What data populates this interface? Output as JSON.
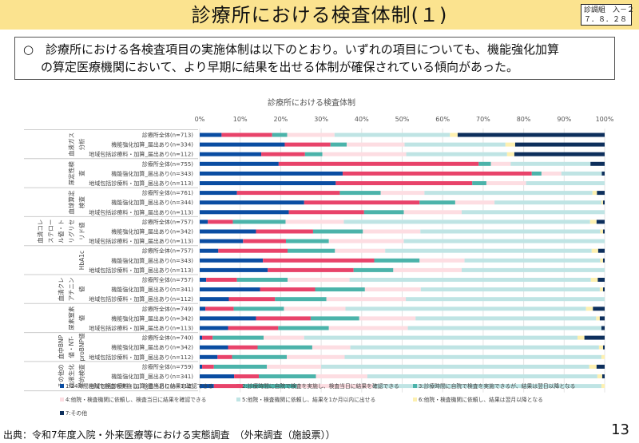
{
  "header": {
    "title": "診療所における検査体制(１)",
    "doc_id_line1": "診調組　入－２",
    "doc_id_line2": "７．８．２８"
  },
  "summary": {
    "bullet": "○",
    "line1": "診療所における各検査項目の実施体制は以下のとおり。いずれの項目についても、機能強化加算",
    "line2": "の算定医療機関において、より早期に結果を出せる体制が確保されている傾向があった。"
  },
  "footer": {
    "source": "出典：令和7年度入院・外来医療等における実態調査　（外来調査（施設票））",
    "page_number": "13"
  },
  "chart_data": {
    "type": "bar",
    "orientation": "horizontal-stacked-100",
    "title": "診療所における検査体制",
    "xlim": [
      0,
      100
    ],
    "x_ticks": [
      "0%",
      "10%",
      "20%",
      "30%",
      "40%",
      "50%",
      "60%",
      "70%",
      "80%",
      "90%",
      "100%"
    ],
    "grid": true,
    "legend_position": "bottom",
    "series": [
      {
        "name": "1:24時間自院で検査を実施し、検査当日に結果を確認できる",
        "color": "#0a4da2"
      },
      {
        "name": "2:診療時間に自院で検査を実施し、検査当日に結果を確認できる",
        "color": "#e8436a"
      },
      {
        "name": "3:診療時間に自院で検査を実施できるが、結果は翌日以降となる",
        "color": "#4bb3aa"
      },
      {
        "name": "4:他院・検査機関に依頼し、検査当日に結果を確認できる",
        "color": "#fddde2"
      },
      {
        "name": "5:他院・検査機関に依頼し、結果を1か月以内に出せる",
        "color": "#bfe4e4"
      },
      {
        "name": "6:他院・検査機関に依頼し、結果は翌月以降となる",
        "color": "#fdf0b0"
      },
      {
        "name": "7:その他",
        "color": "#0d2f5c"
      }
    ],
    "groups": [
      {
        "category": [
          "血液ガス",
          "分析"
        ],
        "rows": [
          {
            "label": "診療所全体(n=713)",
            "values": [
              5.4,
              12.5,
              3.7,
              11.7,
              28.5,
              1.9,
              36.3
            ]
          },
          {
            "label": "機能強化加算_届出あり(n=334)",
            "values": [
              21.0,
              11.3,
              4.0,
              14.3,
              24.9,
              2.4,
              22.1
            ]
          },
          {
            "label": "地域包括診療料・加算_届出あり(n=112)",
            "values": [
              15.2,
              10.8,
              4.3,
              20.7,
              24.9,
              1.8,
              22.3
            ]
          }
        ]
      },
      {
        "category": [
          "尿定性検",
          "査"
        ],
        "rows": [
          {
            "label": "診療所全体(n=755)",
            "values": [
              19.5,
              49.4,
              3.0,
              4.9,
              19.7,
              0.0,
              3.5
            ]
          },
          {
            "label": "機能強化加算_届出あり(n=343)",
            "values": [
              35.3,
              46.7,
              2.4,
              4.9,
              10.0,
              0.0,
              0.7
            ]
          },
          {
            "label": "地域包括診療料・加算_届出あり(n=113)",
            "values": [
              33.6,
              33.7,
              3.5,
              9.8,
              19.4,
              0.0,
              0.0
            ]
          }
        ]
      },
      {
        "category": [
          "血球算定",
          "検査"
        ],
        "rows": [
          {
            "label": "診療所全体(n=761)",
            "values": [
              9.2,
              25.4,
              10.1,
              10.8,
              41.5,
              1.1,
              1.9
            ]
          },
          {
            "label": "機能強化加算_届出あり(n=344)",
            "values": [
              25.8,
              28.5,
              8.8,
              9.7,
              26.4,
              0.4,
              0.4
            ]
          },
          {
            "label": "地域包括診療料・加算_届出あり(n=113)",
            "values": [
              22.0,
              18.6,
              9.8,
              14.3,
              35.3,
              0.0,
              0.0
            ]
          }
        ]
      },
      {
        "category": [
          "血清コレ",
          "ステロー",
          "ル値・ト",
          "リグリセ",
          "リド値"
        ],
        "rows": [
          {
            "label": "診療所全体(n=757)",
            "values": [
              2.0,
              6.2,
              13.0,
              14.4,
              60.8,
              1.6,
              2.0
            ]
          },
          {
            "label": "機能強化加算_届出あり(n=342)",
            "values": [
              13.9,
              14.1,
              12.3,
              14.2,
              44.4,
              0.7,
              0.4
            ]
          },
          {
            "label": "地域包括診療料・加算_届出あり(n=113)",
            "values": [
              10.7,
              10.6,
              10.6,
              18.5,
              49.6,
              0.0,
              0.0
            ]
          }
        ]
      },
      {
        "category": [
          "HbA1c"
        ],
        "rows": [
          {
            "label": "診療所全体(n=757)",
            "values": [
              4.6,
              17.1,
              11.7,
              12.4,
              51.0,
              1.6,
              1.6
            ]
          },
          {
            "label": "機能強化加算_届出あり(n=343)",
            "values": [
              15.6,
              27.5,
              11.2,
              11.1,
              33.5,
              0.7,
              0.4
            ]
          },
          {
            "label": "地域包括診療料・加算_届出あり(n=113)",
            "values": [
              16.8,
              21.2,
              9.8,
              16.9,
              35.3,
              0.0,
              0.0
            ]
          }
        ]
      },
      {
        "category": [
          "血清クレ",
          "アチニン",
          "値"
        ],
        "rows": [
          {
            "label": "診療所全体(n=757)",
            "values": [
              1.6,
              7.6,
              12.5,
              15.3,
              59.6,
              1.7,
              1.7
            ]
          },
          {
            "label": "機能強化加算_届出あり(n=341)",
            "values": [
              14.9,
              13.6,
              12.3,
              13.8,
              44.2,
              0.8,
              0.4
            ]
          },
          {
            "label": "地域包括診療料・加算_届出あり(n=112)",
            "values": [
              7.2,
              11.4,
              12.7,
              19.6,
              49.1,
              0.0,
              0.0
            ]
          }
        ]
      },
      {
        "category": [
          "尿素窒素",
          "値"
        ],
        "rows": [
          {
            "label": "診療所全体(n=749)",
            "values": [
              1.4,
              7.0,
              12.4,
              15.2,
              59.4,
              1.7,
              2.9
            ]
          },
          {
            "label": "機能強化加算_届出あり(n=342)",
            "values": [
              13.9,
              13.5,
              12.0,
              13.9,
              44.6,
              0.9,
              1.2
            ]
          },
          {
            "label": "地域包括診療料・加算_届出あり(n=113)",
            "values": [
              7.0,
              12.4,
              12.5,
              19.5,
              47.8,
              0.0,
              0.8
            ]
          }
        ]
      },
      {
        "category": [
          "血中BNP",
          "値・NT-",
          "proBNP値"
        ],
        "rows": [
          {
            "label": "診療所全体(n=740)",
            "values": [
              0.6,
              2.6,
              12.6,
              10.0,
              67.5,
              1.7,
              5.0
            ]
          },
          {
            "label": "機能強化加算_届出あり(n=342)",
            "values": [
              7.0,
              7.3,
              13.5,
              9.4,
              61.4,
              1.0,
              0.4
            ]
          },
          {
            "label": "地域包括診療料・加算_届出あり(n=112)",
            "values": [
              4.4,
              3.6,
              13.5,
              14.3,
              63.4,
              0.8,
              0.0
            ]
          }
        ]
      },
      {
        "category": [
          "その他の",
          "血液生化",
          "学的検査"
        ],
        "rows": [
          {
            "label": "診療所全体(n=759)",
            "values": [
              0.6,
              2.9,
              13.1,
              13.4,
              66.2,
              1.8,
              2.0
            ]
          },
          {
            "label": "機能強化加算_届出あり(n=341)",
            "values": [
              8.5,
              6.1,
              14.1,
              12.7,
              56.8,
              1.2,
              0.6
            ]
          },
          {
            "label": "地域包括診療料・加算_届出あり(n=112)",
            "values": [
              3.5,
              7.2,
              13.3,
              18.8,
              56.4,
              0.8,
              0.0
            ]
          }
        ]
      }
    ]
  }
}
